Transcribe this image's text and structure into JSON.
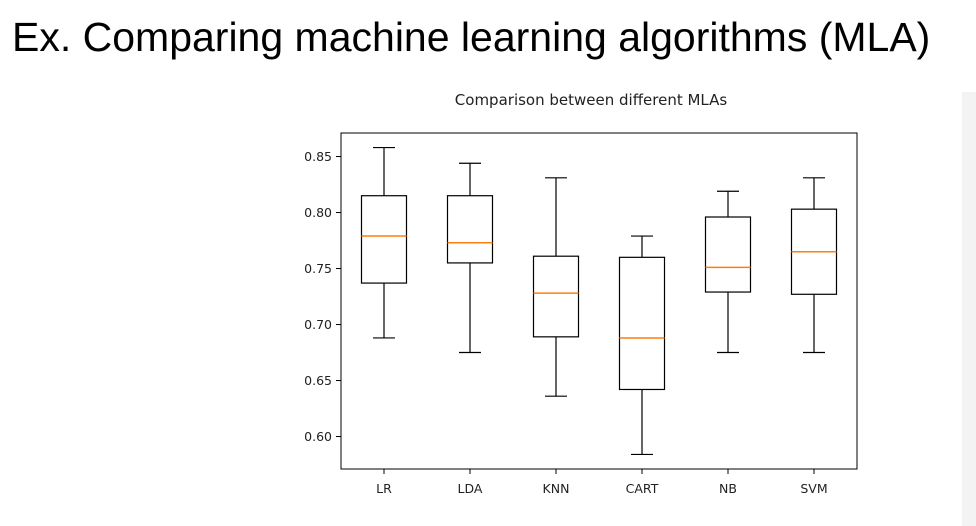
{
  "slide": {
    "title": "Ex. Comparing machine learning algorithms (MLA)"
  },
  "chart_data": {
    "type": "boxplot",
    "title": "Comparison between different MLAs",
    "xlabel": "",
    "ylabel": "",
    "categories": [
      "LR",
      "LDA",
      "KNN",
      "CART",
      "NB",
      "SVM"
    ],
    "boxes": [
      {
        "whisker_low": 0.688,
        "q1": 0.737,
        "median": 0.779,
        "q3": 0.815,
        "whisker_high": 0.858
      },
      {
        "whisker_low": 0.675,
        "q1": 0.755,
        "median": 0.773,
        "q3": 0.815,
        "whisker_high": 0.844
      },
      {
        "whisker_low": 0.636,
        "q1": 0.689,
        "median": 0.728,
        "q3": 0.761,
        "whisker_high": 0.831
      },
      {
        "whisker_low": 0.584,
        "q1": 0.642,
        "median": 0.688,
        "q3": 0.76,
        "whisker_high": 0.779
      },
      {
        "whisker_low": 0.675,
        "q1": 0.729,
        "median": 0.751,
        "q3": 0.796,
        "whisker_high": 0.819
      },
      {
        "whisker_low": 0.675,
        "q1": 0.727,
        "median": 0.765,
        "q3": 0.803,
        "whisker_high": 0.831
      }
    ],
    "yticks": [
      "0.60",
      "0.65",
      "0.70",
      "0.75",
      "0.80",
      "0.85"
    ],
    "ylim": [
      0.571,
      0.871
    ],
    "grid": false,
    "colors": {
      "box": "#000000",
      "median": "#ff7f0e"
    }
  }
}
